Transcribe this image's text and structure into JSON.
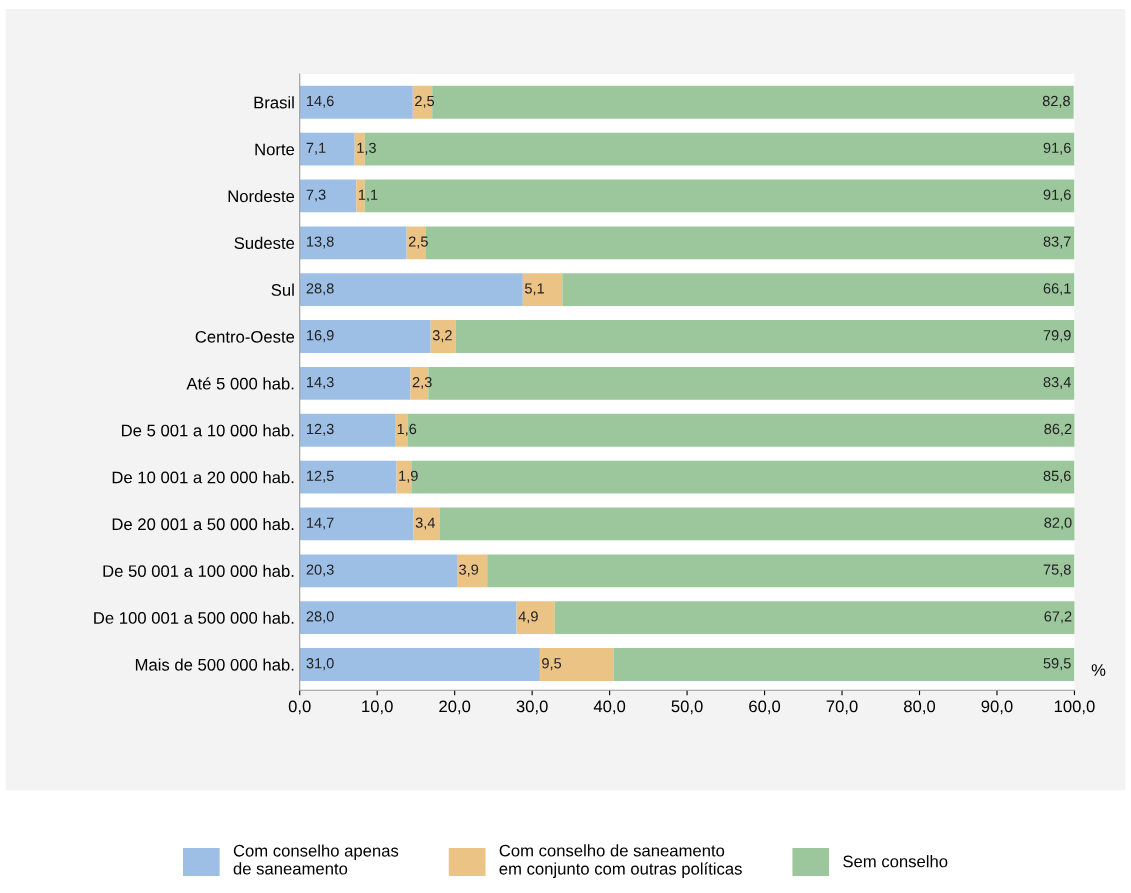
{
  "chart_data": {
    "type": "bar",
    "orientation": "horizontal",
    "stacked": true,
    "categories": [
      "Brasil",
      "Norte",
      "Nordeste",
      "Sudeste",
      "Sul",
      "Centro-Oeste",
      "Até 5 000 hab.",
      "De 5 001 a 10 000 hab.",
      "De 10 001 a 20 000 hab.",
      "De 20 001 a 50 000 hab.",
      "De 50 001 a 100 000 hab.",
      "De 100 001 a 500 000 hab.",
      "Mais de 500 000 hab."
    ],
    "series": [
      {
        "name": "Com conselho apenas\nde saneamento",
        "color": "#9dbfe6",
        "values": [
          14.6,
          7.1,
          7.3,
          13.8,
          28.8,
          16.9,
          14.3,
          12.3,
          12.5,
          14.7,
          20.3,
          28.0,
          31.0
        ],
        "value_labels": [
          "14,6",
          "7,1",
          "7,3",
          "13,8",
          "28,8",
          "16,9",
          "14,3",
          "12,3",
          "12,5",
          "14,7",
          "20,3",
          "28,0",
          "31,0"
        ]
      },
      {
        "name": "Com conselho de saneamento\nem conjunto com outras políticas",
        "color": "#ebc384",
        "values": [
          2.5,
          1.3,
          1.1,
          2.5,
          5.1,
          3.2,
          2.3,
          1.6,
          1.9,
          3.4,
          3.9,
          4.9,
          9.5
        ],
        "value_labels": [
          "2,5",
          "1,3",
          "1,1",
          "2,5",
          "5,1",
          "3,2",
          "2,3",
          "1,6",
          "1,9",
          "3,4",
          "3,9",
          "4,9",
          "9,5"
        ]
      },
      {
        "name": "Sem conselho",
        "color": "#9cc79c",
        "values": [
          82.8,
          91.6,
          91.6,
          83.7,
          66.1,
          79.9,
          83.4,
          86.2,
          85.6,
          82.0,
          75.8,
          67.2,
          59.5
        ],
        "value_labels": [
          "82,8",
          "91,6",
          "91,6",
          "83,7",
          "66,1",
          "79,9",
          "83,4",
          "86,2",
          "85,6",
          "82,0",
          "75,8",
          "67,2",
          "59,5"
        ]
      }
    ],
    "xlabel": "%",
    "xlim": [
      0,
      100
    ],
    "xticks": [
      {
        "value": 0,
        "label": "0,0"
      },
      {
        "value": 10,
        "label": "10,0"
      },
      {
        "value": 20,
        "label": "20,0"
      },
      {
        "value": 30,
        "label": "30,0"
      },
      {
        "value": 40,
        "label": "40,0"
      },
      {
        "value": 50,
        "label": "50,0"
      },
      {
        "value": 60,
        "label": "60,0"
      },
      {
        "value": 70,
        "label": "70,0"
      },
      {
        "value": 80,
        "label": "80,0"
      },
      {
        "value": 90,
        "label": "90,0"
      },
      {
        "value": 100,
        "label": "100,0"
      }
    ],
    "legend": "bottom",
    "grid": false
  }
}
